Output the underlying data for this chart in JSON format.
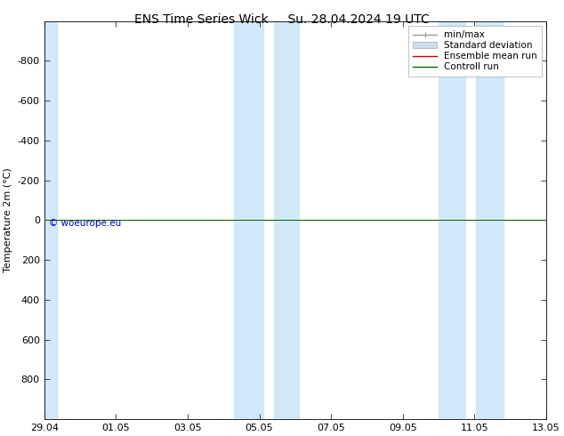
{
  "title_left": "ENS Time Series Wick",
  "title_right": "Su. 28.04.2024 19 UTC",
  "ylabel": "Temperature 2m (°C)",
  "ylim": [
    -1000,
    1000
  ],
  "yticks": [
    -800,
    -600,
    -400,
    -200,
    0,
    200,
    400,
    600,
    800
  ],
  "xtick_labels": [
    "29.04",
    "01.05",
    "03.05",
    "05.05",
    "07.05",
    "09.05",
    "11.05",
    "13.05"
  ],
  "xtick_positions": [
    0,
    2,
    4,
    6,
    8,
    10,
    12,
    14
  ],
  "shaded_regions": [
    [
      -0.1,
      0.35
    ],
    [
      5.3,
      6.1
    ],
    [
      6.4,
      7.1
    ],
    [
      11.0,
      11.75
    ],
    [
      12.05,
      12.8
    ]
  ],
  "shaded_color": "#d0e8f8",
  "horizontal_line_y": 0,
  "horizontal_line_color_red": "#cc0000",
  "horizontal_line_color_green": "#006400",
  "watermark": "© woeurope.eu",
  "watermark_color": "#0000cc",
  "bg_color": "#ffffff",
  "plot_bg_color": "#ffffff",
  "legend_entries": [
    "min/max",
    "Standard deviation",
    "Ensemble mean run",
    "Controll run"
  ],
  "legend_line_colors": [
    "#999999",
    "#ccddee",
    "#cc0000",
    "#006400"
  ],
  "title_fontsize": 10,
  "axis_fontsize": 8,
  "legend_fontsize": 7.5
}
